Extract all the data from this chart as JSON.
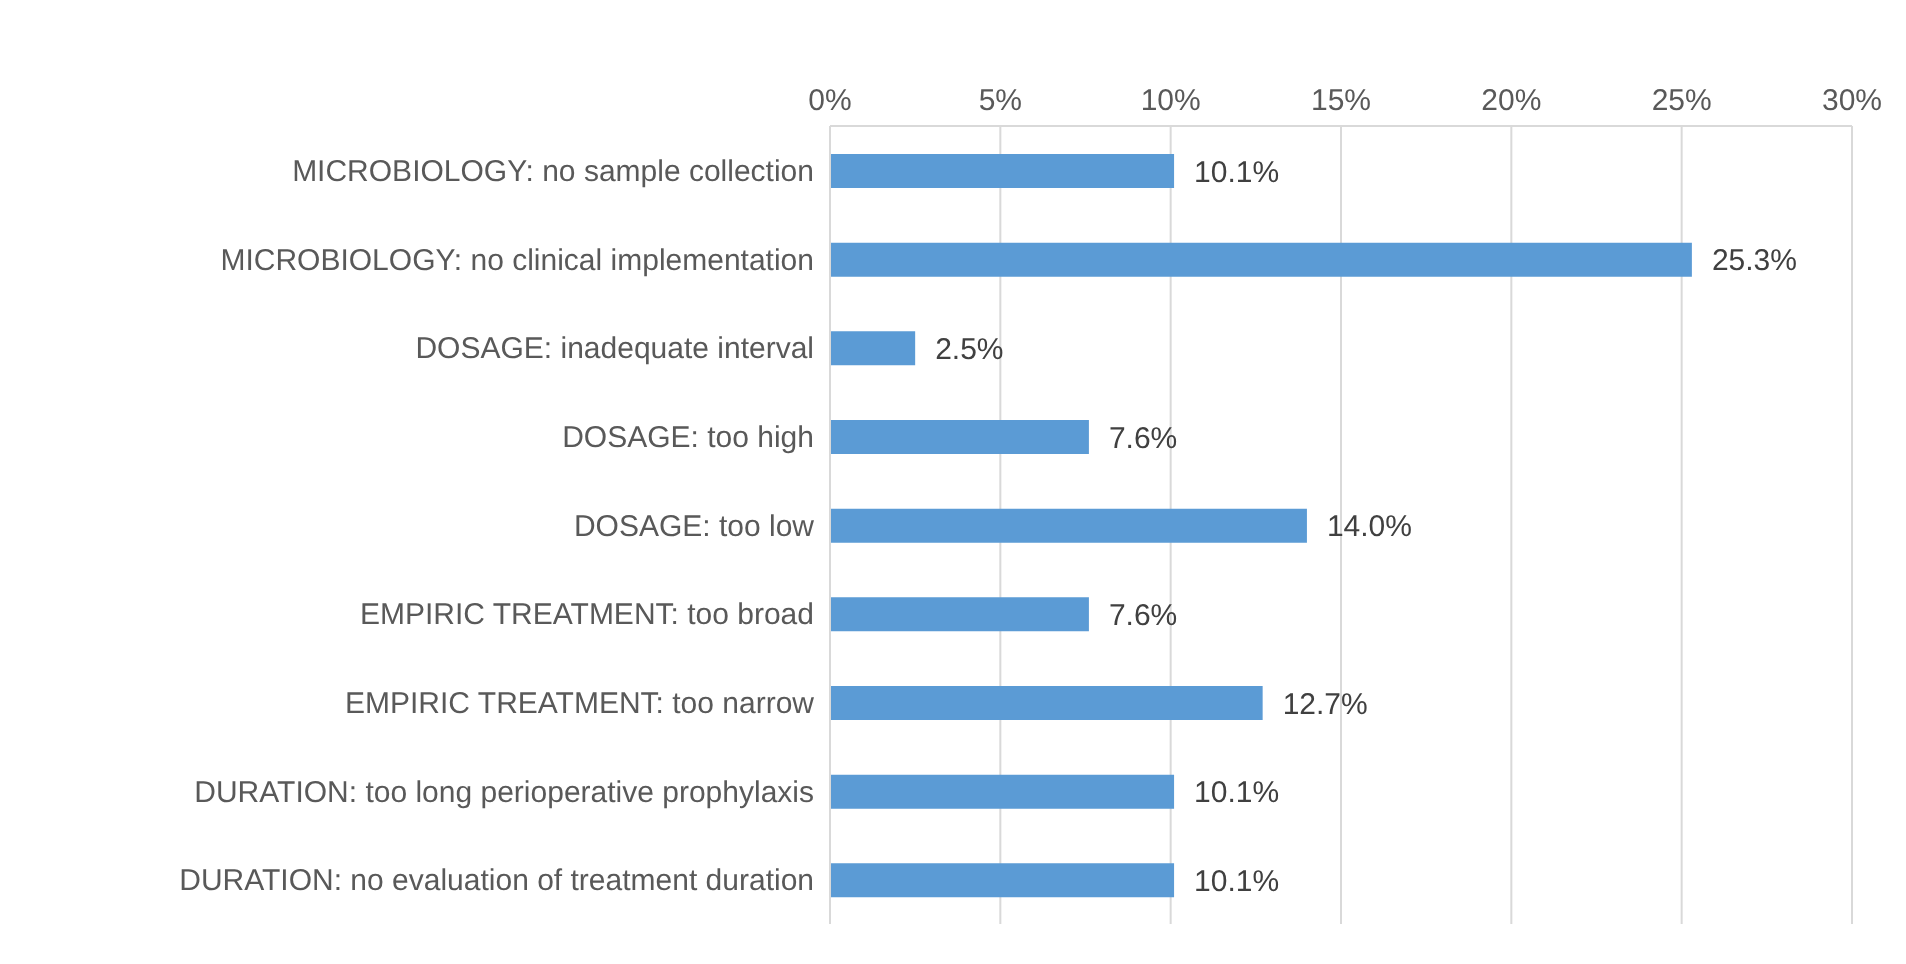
{
  "chart_data": {
    "type": "bar",
    "orientation": "horizontal",
    "categories": [
      "MICROBIOLOGY: no sample collection",
      "MICROBIOLOGY: no clinical implementation",
      "DOSAGE: inadequate interval",
      "DOSAGE: too high",
      "DOSAGE: too low",
      "EMPIRIC TREATMENT: too broad",
      "EMPIRIC TREATMENT: too narrow",
      "DURATION: too long perioperative prophylaxis",
      "DURATION: no evaluation of treatment duration"
    ],
    "values": [
      10.1,
      25.3,
      2.5,
      7.6,
      14.0,
      7.6,
      12.7,
      10.1,
      10.1
    ],
    "value_labels": [
      "10.1%",
      "25.3%",
      "2.5%",
      "7.6%",
      "14.0%",
      "7.6%",
      "12.7%",
      "10.1%",
      "10.1%"
    ],
    "color": "#5b9bd5",
    "xlim": [
      0,
      30
    ],
    "xticks": [
      {
        "value": 0,
        "label": "0%"
      },
      {
        "value": 5,
        "label": "5%"
      },
      {
        "value": 10,
        "label": "10%"
      },
      {
        "value": 15,
        "label": "15%"
      },
      {
        "value": 20,
        "label": "20%"
      },
      {
        "value": 25,
        "label": "25%"
      },
      {
        "value": 30,
        "label": "30%"
      }
    ],
    "grid": "x"
  }
}
